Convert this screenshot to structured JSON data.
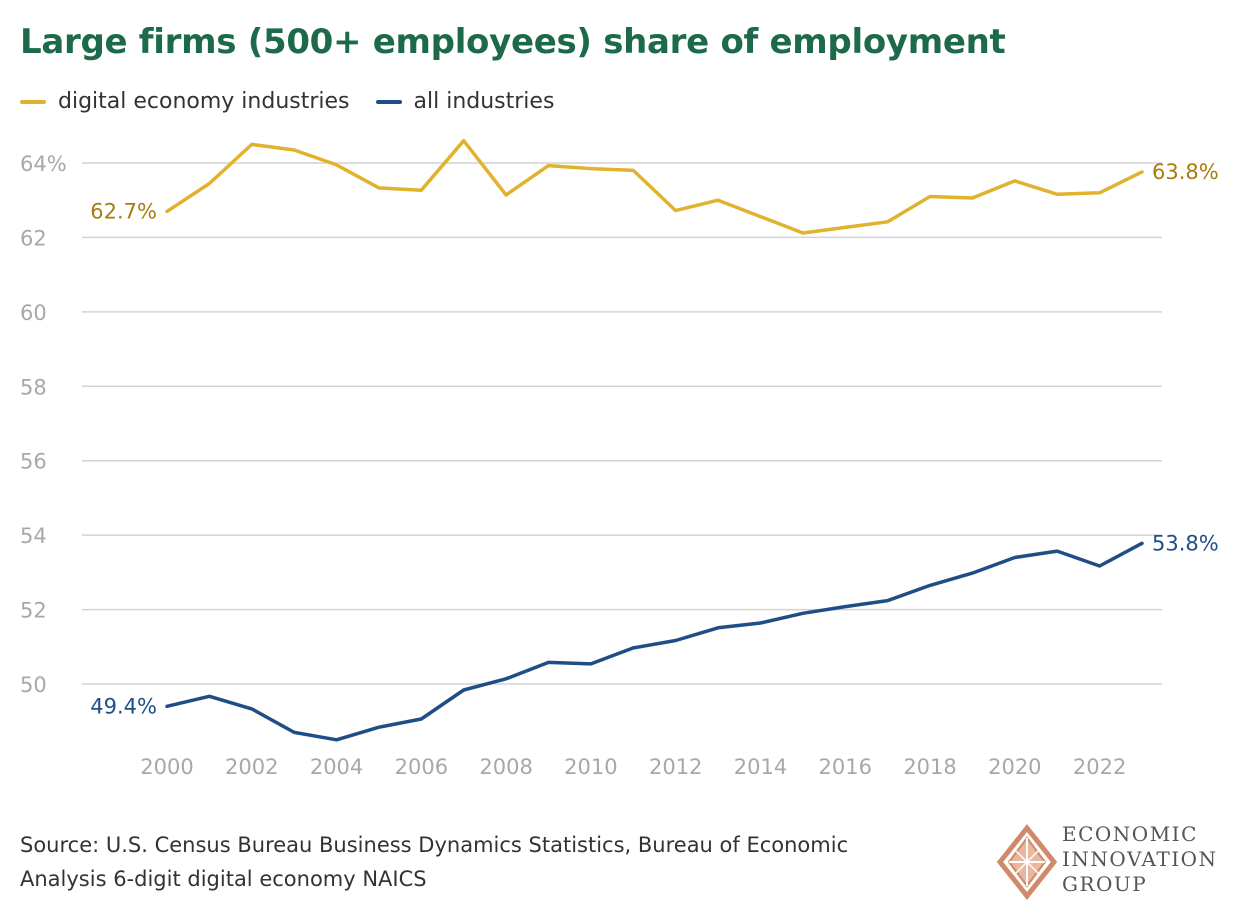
{
  "chart_data": {
    "type": "line",
    "title": "Large firms (500+ employees) share of employment",
    "xlabel": "",
    "ylabel": "",
    "xlim": [
      2000,
      2023
    ],
    "ylim": [
      48.2,
      64.6
    ],
    "x_ticks": [
      2000,
      2002,
      2004,
      2006,
      2008,
      2010,
      2012,
      2014,
      2016,
      2018,
      2020,
      2022
    ],
    "y_ticks": [
      {
        "value": 50,
        "label": "50"
      },
      {
        "value": 52,
        "label": "52"
      },
      {
        "value": 54,
        "label": "54"
      },
      {
        "value": 56,
        "label": "56"
      },
      {
        "value": 58,
        "label": "58"
      },
      {
        "value": 60,
        "label": "60"
      },
      {
        "value": 62,
        "label": "62"
      },
      {
        "value": 64,
        "label": "64%"
      }
    ],
    "grid": true,
    "legend_position": "top-left",
    "x": [
      2000,
      2001,
      2002,
      2003,
      2004,
      2005,
      2006,
      2007,
      2008,
      2009,
      2010,
      2011,
      2012,
      2013,
      2014,
      2015,
      2016,
      2017,
      2018,
      2019,
      2020,
      2021,
      2022,
      2023
    ],
    "series": [
      {
        "name": "digital economy industries",
        "color": "#e0b22e",
        "label_color": "#a57d10",
        "start_label": "62.7%",
        "end_label": "63.8%",
        "values": [
          62.7,
          63.45,
          64.5,
          64.35,
          63.95,
          63.33,
          63.27,
          64.6,
          63.14,
          63.93,
          63.85,
          63.8,
          62.72,
          63.0,
          62.56,
          62.12,
          62.27,
          62.42,
          63.1,
          63.06,
          63.52,
          63.16,
          63.2,
          63.76
        ]
      },
      {
        "name": "all industries",
        "color": "#1f4e87",
        "label_color": "#1f4e87",
        "start_label": "49.4%",
        "end_label": "53.8%",
        "values": [
          49.4,
          49.67,
          49.33,
          48.7,
          48.5,
          48.84,
          49.06,
          49.84,
          50.14,
          50.58,
          50.54,
          50.97,
          51.17,
          51.51,
          51.64,
          51.9,
          52.08,
          52.24,
          52.65,
          52.98,
          53.4,
          53.57,
          53.17,
          53.78
        ]
      }
    ]
  },
  "source": {
    "line1": "Source: U.S. Census Bureau Business Dynamics Statistics, Bureau of Economic",
    "line2": "Analysis 6-digit digital economy NAICS"
  },
  "logo": {
    "line1": "ECONOMIC",
    "line2": "INNOVATION",
    "line3": "GROUP",
    "icon": "diamond-emblem-icon",
    "color": "#d0896a"
  }
}
